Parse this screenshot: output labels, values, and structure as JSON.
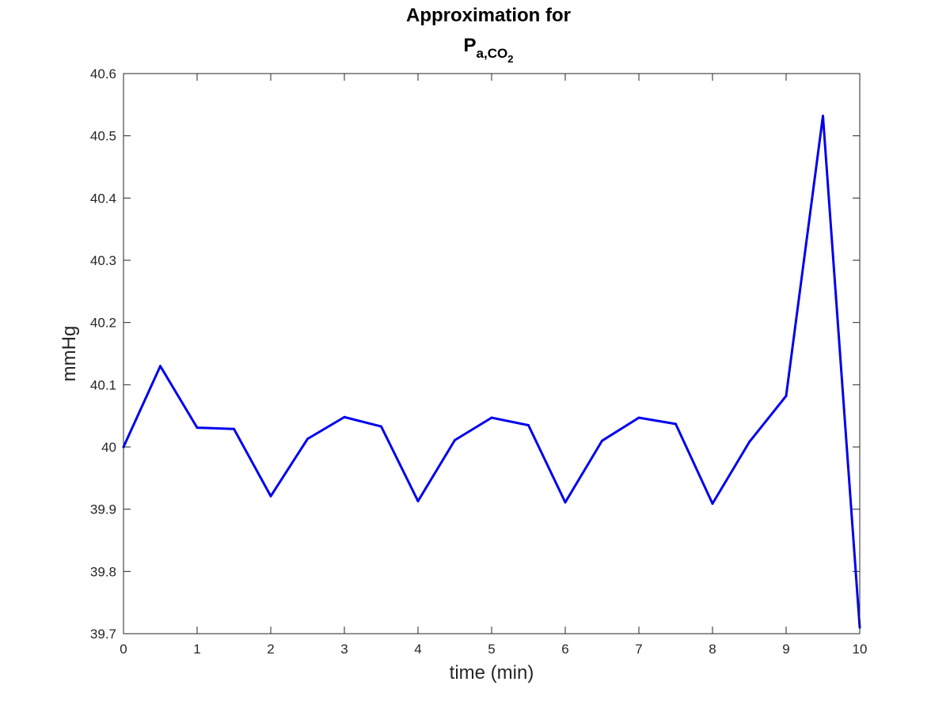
{
  "chart_data": {
    "type": "line",
    "title": "Approximation for",
    "title_math": {
      "base": "P",
      "subscript_prefix": "a,CO",
      "subscript_sub": "2"
    },
    "xlabel": "time (min)",
    "ylabel": "mmHg",
    "xlim": [
      0,
      10
    ],
    "ylim": [
      39.7,
      40.6
    ],
    "xticks": [
      0,
      1,
      2,
      3,
      4,
      5,
      6,
      7,
      8,
      9,
      10
    ],
    "yticks": [
      39.7,
      39.8,
      39.9,
      40,
      40.1,
      40.2,
      40.3,
      40.4,
      40.5,
      40.6
    ],
    "xtick_labels": [
      "0",
      "1",
      "2",
      "3",
      "4",
      "5",
      "6",
      "7",
      "8",
      "9",
      "10"
    ],
    "ytick_labels": [
      "39.7",
      "39.8",
      "39.9",
      "40",
      "40.1",
      "40.2",
      "40.3",
      "40.4",
      "40.5",
      "40.6"
    ],
    "grid": false,
    "box": true,
    "series": [
      {
        "color": "#0000ee",
        "x": [
          0,
          0.5,
          1,
          1.5,
          2,
          2.5,
          3,
          3.5,
          4,
          4.5,
          5,
          5.5,
          6,
          6.5,
          7,
          7.5,
          8,
          8.5,
          9,
          9.5,
          10
        ],
        "y": [
          40.0,
          40.13,
          40.031,
          40.029,
          39.921,
          40.013,
          40.048,
          40.033,
          39.913,
          40.011,
          40.047,
          40.035,
          39.911,
          40.01,
          40.047,
          40.037,
          39.909,
          40.008,
          40.082,
          40.532,
          39.71
        ]
      }
    ]
  }
}
